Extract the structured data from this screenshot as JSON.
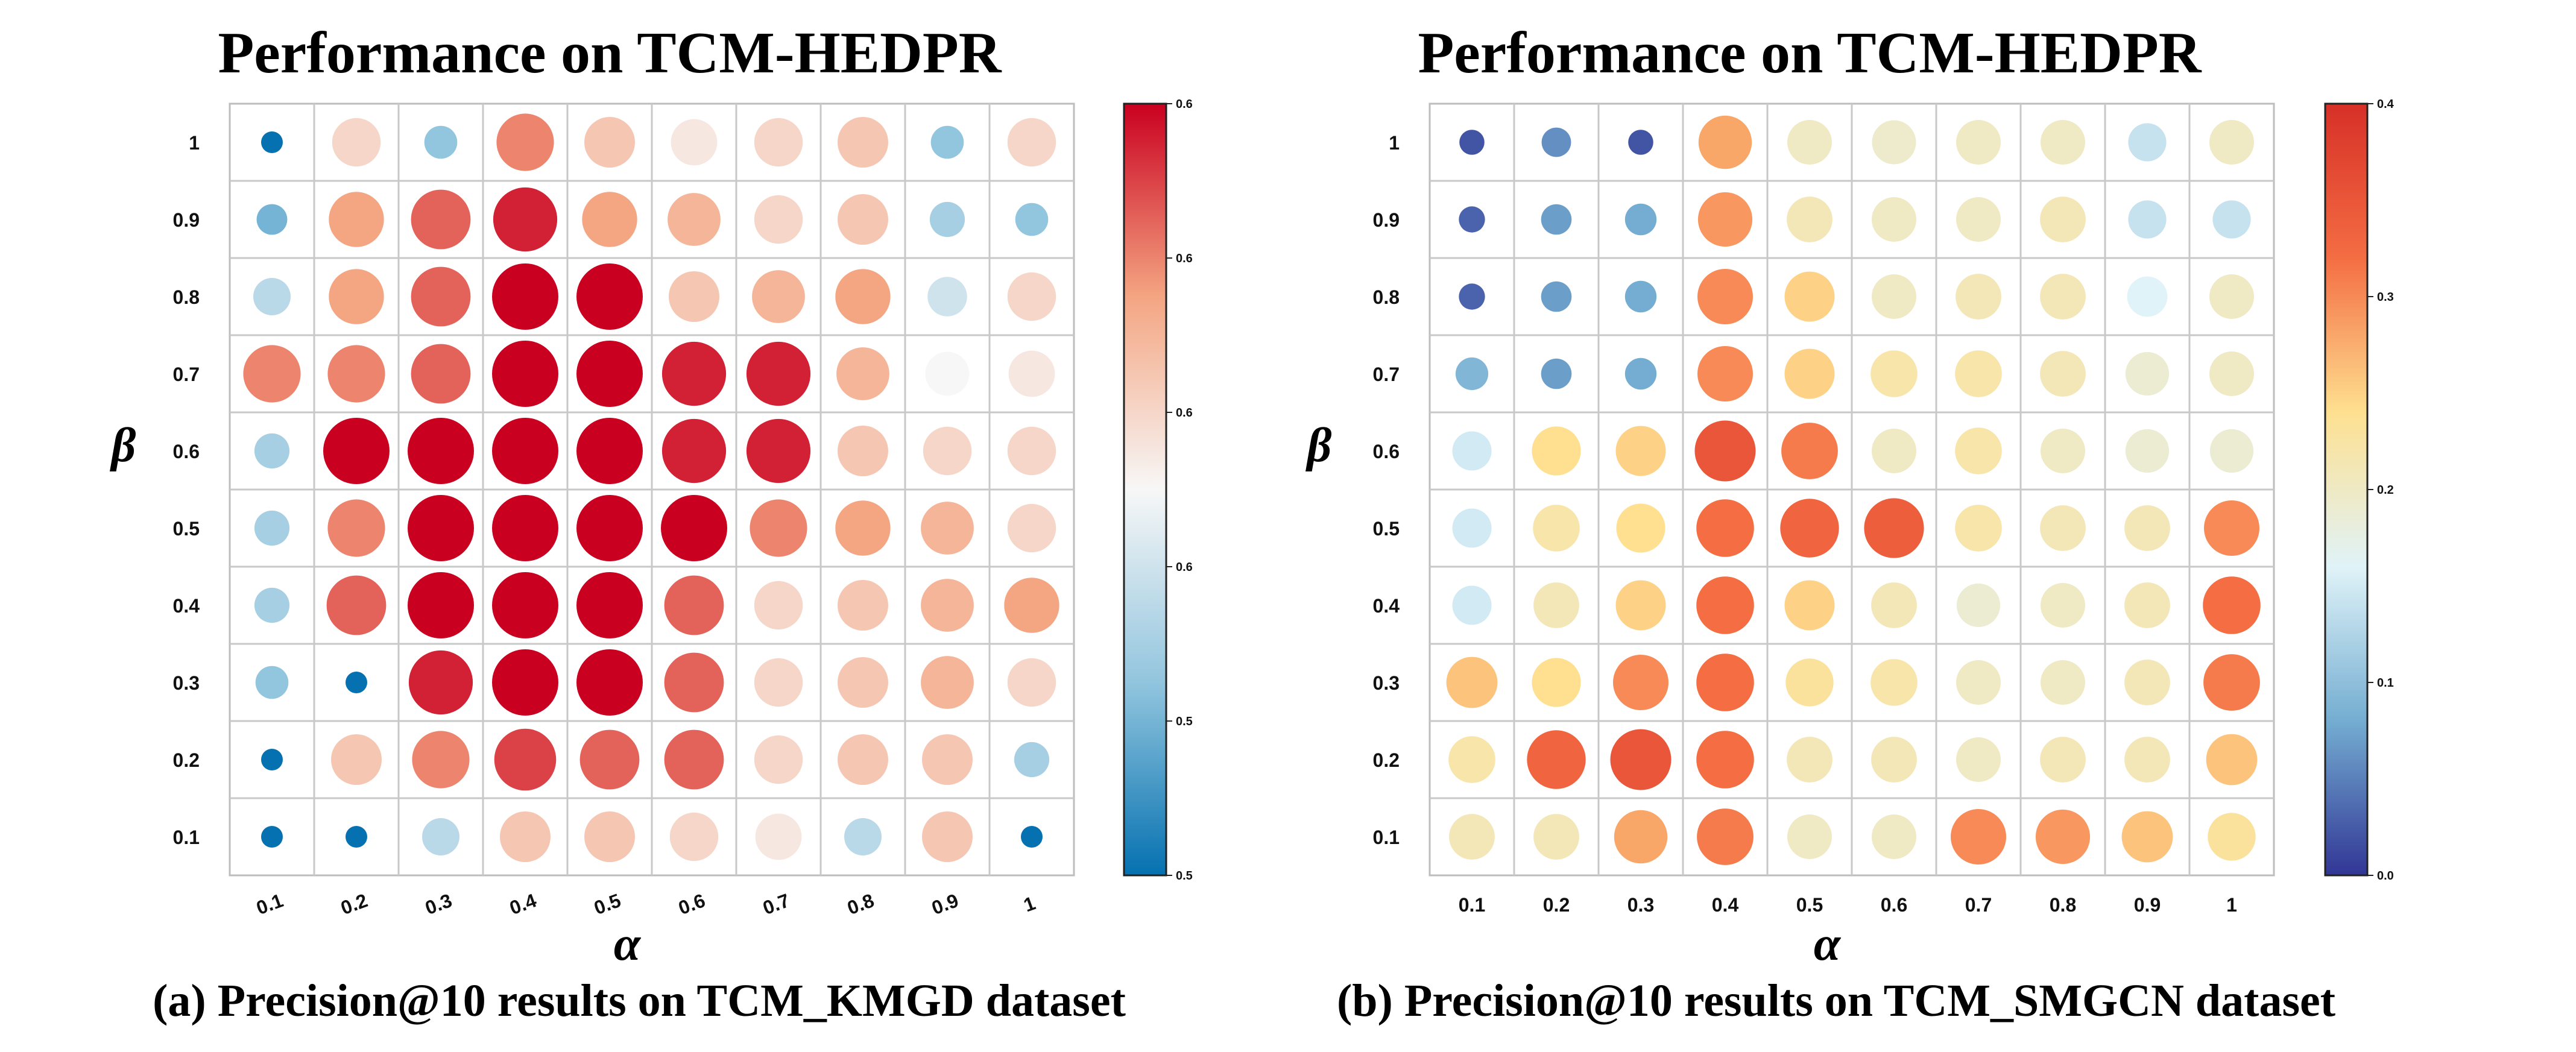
{
  "chart_data": [
    {
      "type": "bubble-heatmap",
      "title": "Performance on TCM-HEDPR",
      "caption": "(a) Precision@10 results on TCM_KMGD dataset",
      "xlabel": "α",
      "ylabel": "β",
      "x_categories": [
        "0.1",
        "0.2",
        "0.3",
        "0.4",
        "0.5",
        "0.6",
        "0.7",
        "0.8",
        "0.9",
        "1"
      ],
      "y_categories": [
        "0.1",
        "0.2",
        "0.3",
        "0.4",
        "0.5",
        "0.6",
        "0.7",
        "0.8",
        "0.9",
        "1"
      ],
      "colorbar": {
        "min": 0.5,
        "max": 0.6,
        "colormap": "RdBu_r",
        "tick_labels": [
          "0.5",
          "0.5",
          "0.6",
          "0.6",
          "0.6",
          "0.6"
        ]
      },
      "values_by_beta_from_top": [
        [
          0.5,
          0.56,
          0.525,
          0.58,
          0.565,
          0.555,
          0.56,
          0.565,
          0.525,
          0.56
        ],
        [
          0.52,
          0.575,
          0.585,
          0.595,
          0.575,
          0.57,
          0.56,
          0.565,
          0.53,
          0.525
        ],
        [
          0.535,
          0.575,
          0.585,
          0.605,
          0.625,
          0.565,
          0.57,
          0.575,
          0.54,
          0.56
        ],
        [
          0.58,
          0.58,
          0.585,
          0.605,
          0.605,
          0.595,
          0.595,
          0.57,
          0.55,
          0.555
        ],
        [
          0.53,
          0.605,
          0.615,
          0.63,
          0.62,
          0.595,
          0.595,
          0.565,
          0.56,
          0.56
        ],
        [
          0.53,
          0.58,
          0.62,
          0.62,
          0.62,
          0.6,
          0.58,
          0.575,
          0.57,
          0.56
        ],
        [
          0.53,
          0.585,
          0.625,
          0.605,
          0.61,
          0.585,
          0.56,
          0.565,
          0.57,
          0.575
        ],
        [
          0.525,
          0.5,
          0.595,
          0.6,
          0.605,
          0.585,
          0.56,
          0.565,
          0.57,
          0.56
        ],
        [
          0.5,
          0.565,
          0.58,
          0.59,
          0.585,
          0.585,
          0.56,
          0.565,
          0.565,
          0.53
        ],
        [
          0.5,
          0.5,
          0.535,
          0.565,
          0.565,
          0.56,
          0.555,
          0.535,
          0.565,
          0.5
        ]
      ]
    },
    {
      "type": "bubble-heatmap",
      "title": "Performance on TCM-HEDPR",
      "caption": "(b) Precision@10 results on TCM_SMGCN dataset",
      "xlabel": "α",
      "ylabel": "β",
      "x_categories": [
        "0.1",
        "0.2",
        "0.3",
        "0.4",
        "0.5",
        "0.6",
        "0.7",
        "0.8",
        "0.9",
        "1"
      ],
      "y_categories": [
        "0.1",
        "0.2",
        "0.3",
        "0.4",
        "0.5",
        "0.6",
        "0.7",
        "0.8",
        "0.9",
        "1"
      ],
      "colorbar": {
        "min": 0.0,
        "max": 0.4,
        "colormap": "RdYlBu_r",
        "tick_labels": [
          "0.0",
          "0.1",
          "0.2",
          "0.3",
          "0.4"
        ]
      },
      "values_by_beta_from_top": [
        [
          0.02,
          0.06,
          0.02,
          0.28,
          0.2,
          0.195,
          0.2,
          0.2,
          0.14,
          0.2
        ],
        [
          0.03,
          0.07,
          0.08,
          0.29,
          0.21,
          0.2,
          0.2,
          0.21,
          0.14,
          0.14
        ],
        [
          0.03,
          0.07,
          0.08,
          0.3,
          0.25,
          0.2,
          0.21,
          0.21,
          0.16,
          0.2
        ],
        [
          0.09,
          0.07,
          0.08,
          0.3,
          0.25,
          0.22,
          0.22,
          0.21,
          0.19,
          0.2
        ],
        [
          0.15,
          0.24,
          0.25,
          0.35,
          0.31,
          0.2,
          0.22,
          0.2,
          0.19,
          0.19
        ],
        [
          0.15,
          0.22,
          0.24,
          0.32,
          0.33,
          0.34,
          0.22,
          0.21,
          0.21,
          0.3
        ],
        [
          0.15,
          0.21,
          0.25,
          0.32,
          0.25,
          0.21,
          0.19,
          0.2,
          0.21,
          0.32
        ],
        [
          0.26,
          0.24,
          0.3,
          0.32,
          0.23,
          0.22,
          0.2,
          0.2,
          0.21,
          0.31
        ],
        [
          0.22,
          0.33,
          0.35,
          0.32,
          0.21,
          0.21,
          0.2,
          0.21,
          0.21,
          0.26
        ],
        [
          0.21,
          0.21,
          0.28,
          0.31,
          0.2,
          0.2,
          0.3,
          0.29,
          0.26,
          0.23
        ]
      ]
    }
  ]
}
